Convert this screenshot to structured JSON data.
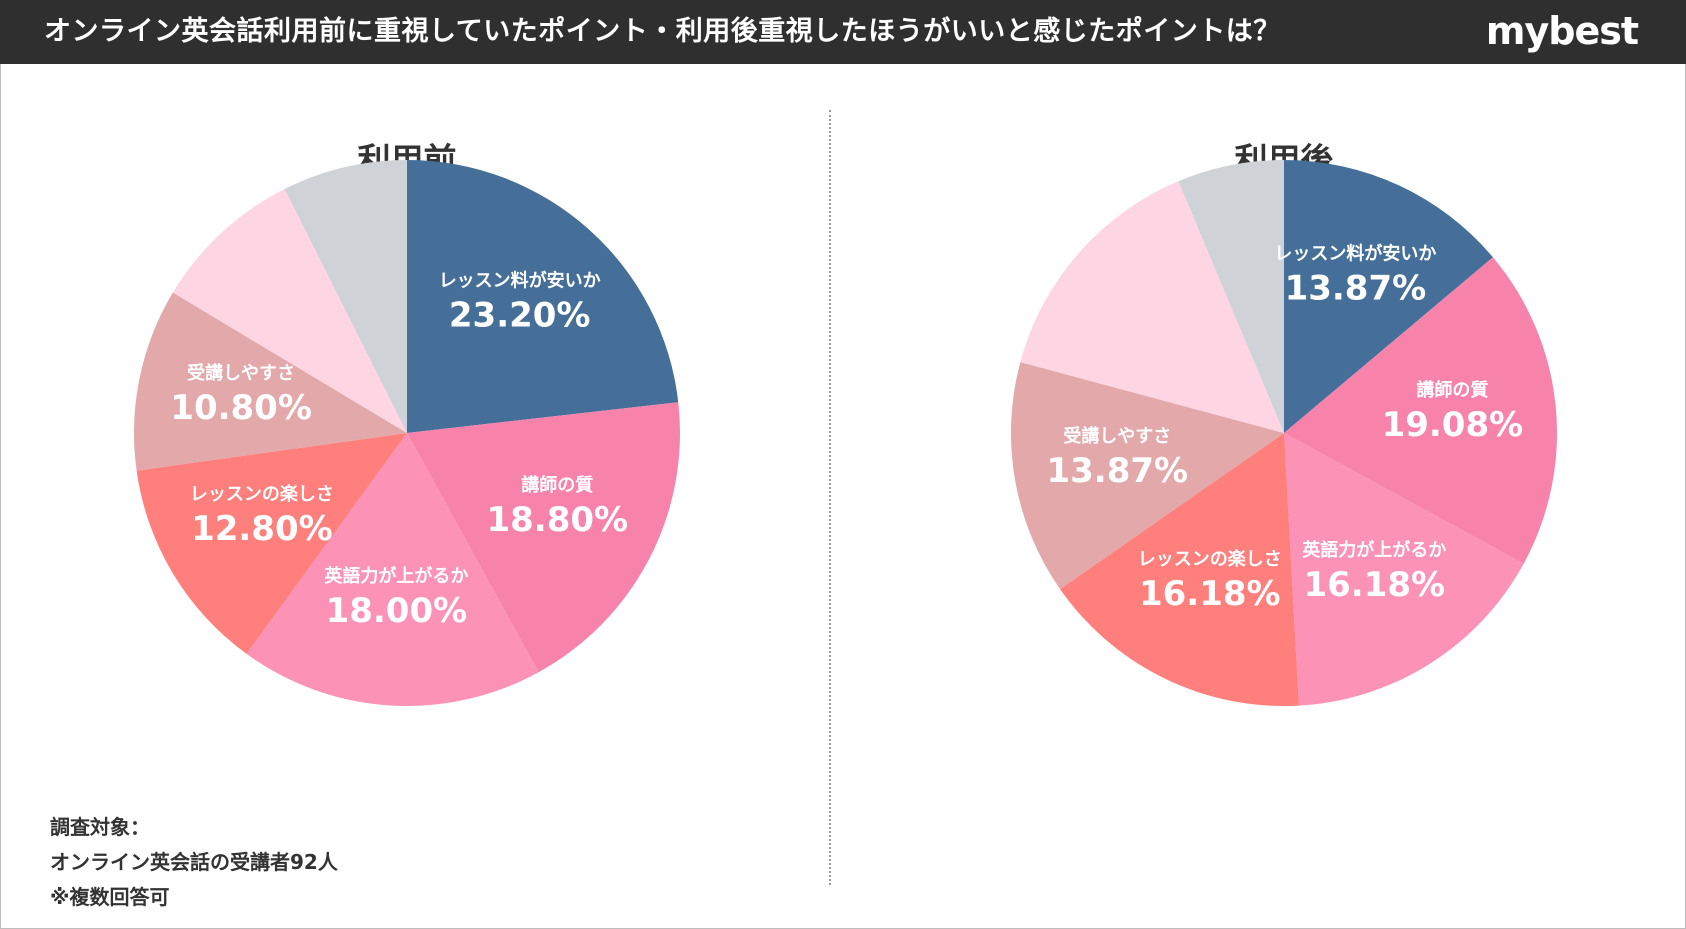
{
  "header": {
    "title": "オンライン英会話利用前に重視していたポイント・利用後重視したほうがいいと感じたポイントは？",
    "brand": "mybest"
  },
  "footnote": {
    "line1": "調査対象：",
    "line2": "オンライン英会話の受講者92人",
    "line3": "※複数回答可"
  },
  "chart_data": [
    {
      "type": "pie",
      "title": "利用前",
      "start_angle_deg": 0,
      "direction": "clockwise",
      "slices": [
        {
          "label": "レッスン料が安いか",
          "value": 23.2,
          "display": "23.20%",
          "color": "#456f99"
        },
        {
          "label": "講師の質",
          "value": 18.8,
          "display": "18.80%",
          "color": "#f783ab"
        },
        {
          "label": "英語力が上がるか",
          "value": 18.0,
          "display": "18.00%",
          "color": "#fc92b6"
        },
        {
          "label": "レッスンの楽しさ",
          "value": 12.8,
          "display": "12.80%",
          "color": "#ff7f7d"
        },
        {
          "label": "受講しやすさ",
          "value": 10.8,
          "display": "10.80%",
          "color": "#e2a8aa"
        },
        {
          "label": "",
          "value": 9.0,
          "display": "",
          "color": "#fed5e3"
        },
        {
          "label": "",
          "value": 7.4,
          "display": "",
          "color": "#cfd2d6"
        }
      ]
    },
    {
      "type": "pie",
      "title": "利用後",
      "start_angle_deg": 0,
      "direction": "clockwise",
      "slices": [
        {
          "label": "レッスン料が安いか",
          "value": 13.87,
          "display": "13.87%",
          "color": "#456f99"
        },
        {
          "label": "講師の質",
          "value": 19.08,
          "display": "19.08%",
          "color": "#f783ab"
        },
        {
          "label": "英語力が上がるか",
          "value": 16.18,
          "display": "16.18%",
          "color": "#fc92b6"
        },
        {
          "label": "レッスンの楽しさ",
          "value": 16.18,
          "display": "16.18%",
          "color": "#ff7f7d"
        },
        {
          "label": "受講しやすさ",
          "value": 13.87,
          "display": "13.87%",
          "color": "#e2a8aa"
        },
        {
          "label": "",
          "value": 14.5,
          "display": "",
          "color": "#fed5e3"
        },
        {
          "label": "",
          "value": 6.32,
          "display": "",
          "color": "#cfd2d6"
        }
      ]
    }
  ]
}
